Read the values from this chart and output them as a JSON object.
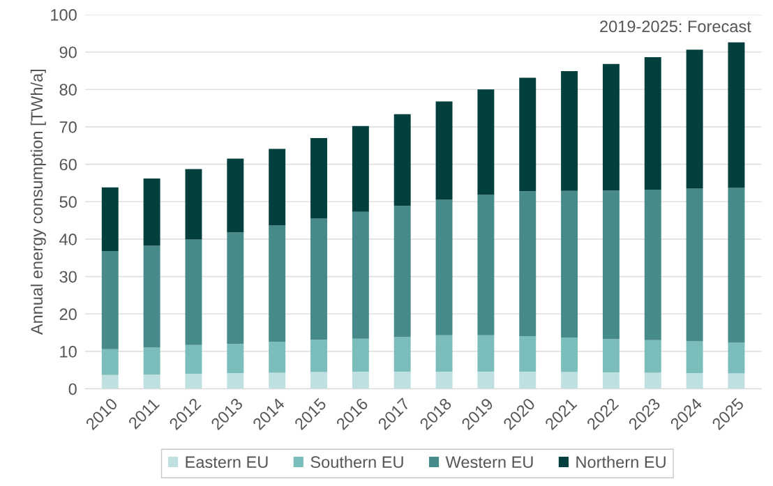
{
  "chart_data": {
    "type": "bar",
    "stacked": true,
    "ylabel": "Annual energy consumption [TWh/a]",
    "categories": [
      "2010",
      "2011",
      "2012",
      "2013",
      "2014",
      "2015",
      "2016",
      "2017",
      "2018",
      "2019",
      "2020",
      "2021",
      "2022",
      "2023",
      "2024",
      "2025"
    ],
    "series": [
      {
        "name": "Eastern EU",
        "color": "#bfe0e0",
        "values": [
          3.7,
          3.8,
          4.0,
          4.2,
          4.3,
          4.5,
          4.6,
          4.6,
          4.6,
          4.6,
          4.6,
          4.5,
          4.4,
          4.3,
          4.2,
          4.1
        ]
      },
      {
        "name": "Southern EU",
        "color": "#7bbdbb",
        "values": [
          6.9,
          7.2,
          7.7,
          7.8,
          8.3,
          8.6,
          8.8,
          9.2,
          9.7,
          9.7,
          9.5,
          9.2,
          8.9,
          8.7,
          8.5,
          8.2
        ]
      },
      {
        "name": "Western EU",
        "color": "#468a89",
        "values": [
          26.2,
          27.2,
          28.2,
          29.8,
          31.0,
          32.4,
          33.9,
          35.1,
          36.2,
          37.5,
          38.7,
          39.2,
          39.7,
          40.2,
          40.8,
          41.4
        ]
      },
      {
        "name": "Northern EU",
        "color": "#033f3d",
        "values": [
          17.0,
          18.0,
          18.8,
          19.7,
          20.5,
          21.5,
          22.9,
          24.5,
          26.3,
          28.2,
          30.3,
          32.0,
          33.8,
          35.4,
          37.1,
          38.9
        ]
      }
    ],
    "ylim": [
      0,
      100
    ],
    "yticks": [
      0,
      10,
      20,
      30,
      40,
      50,
      60,
      70,
      80,
      90,
      100
    ],
    "grid": "y",
    "legend": "bottom",
    "annotations": [
      "2019-2025: Forecast"
    ]
  }
}
